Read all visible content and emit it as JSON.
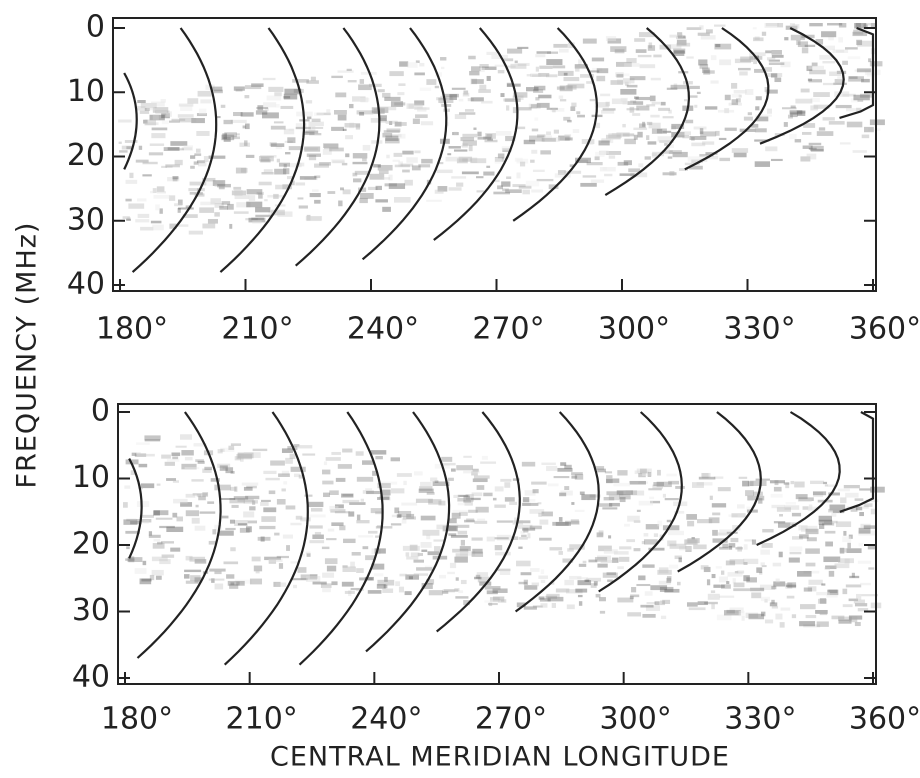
{
  "chart_data": [
    {
      "type": "spectrogram",
      "y_label": "FREQUENCY (MHz)",
      "xlim": [
        180,
        360
      ],
      "xticks": [
        {
          "value": 180,
          "label": "180°"
        },
        {
          "value": 210,
          "label": "210°"
        },
        {
          "value": 240,
          "label": "240°"
        },
        {
          "value": 270,
          "label": "270°"
        },
        {
          "value": 300,
          "label": "300°"
        },
        {
          "value": 330,
          "label": "330°"
        },
        {
          "value": 360,
          "label": "360°"
        }
      ],
      "ylim": [
        40,
        0
      ],
      "yticks": [
        0,
        10,
        20,
        30,
        40
      ]
    },
    {
      "type": "spectrogram",
      "x_label": "CENTRAL MERIDIAN LONGITUDE",
      "xlim": [
        180,
        360
      ],
      "xticks": [
        {
          "value": 180,
          "label": "180°"
        },
        {
          "value": 210,
          "label": "210°"
        },
        {
          "value": 240,
          "label": "240°"
        },
        {
          "value": 270,
          "label": "270°"
        },
        {
          "value": 300,
          "label": "300°"
        },
        {
          "value": 330,
          "label": "330°"
        },
        {
          "value": 360,
          "label": "360°"
        }
      ],
      "ylim": [
        40,
        0
      ],
      "yticks": [
        0,
        10,
        20,
        30,
        40
      ]
    }
  ]
}
